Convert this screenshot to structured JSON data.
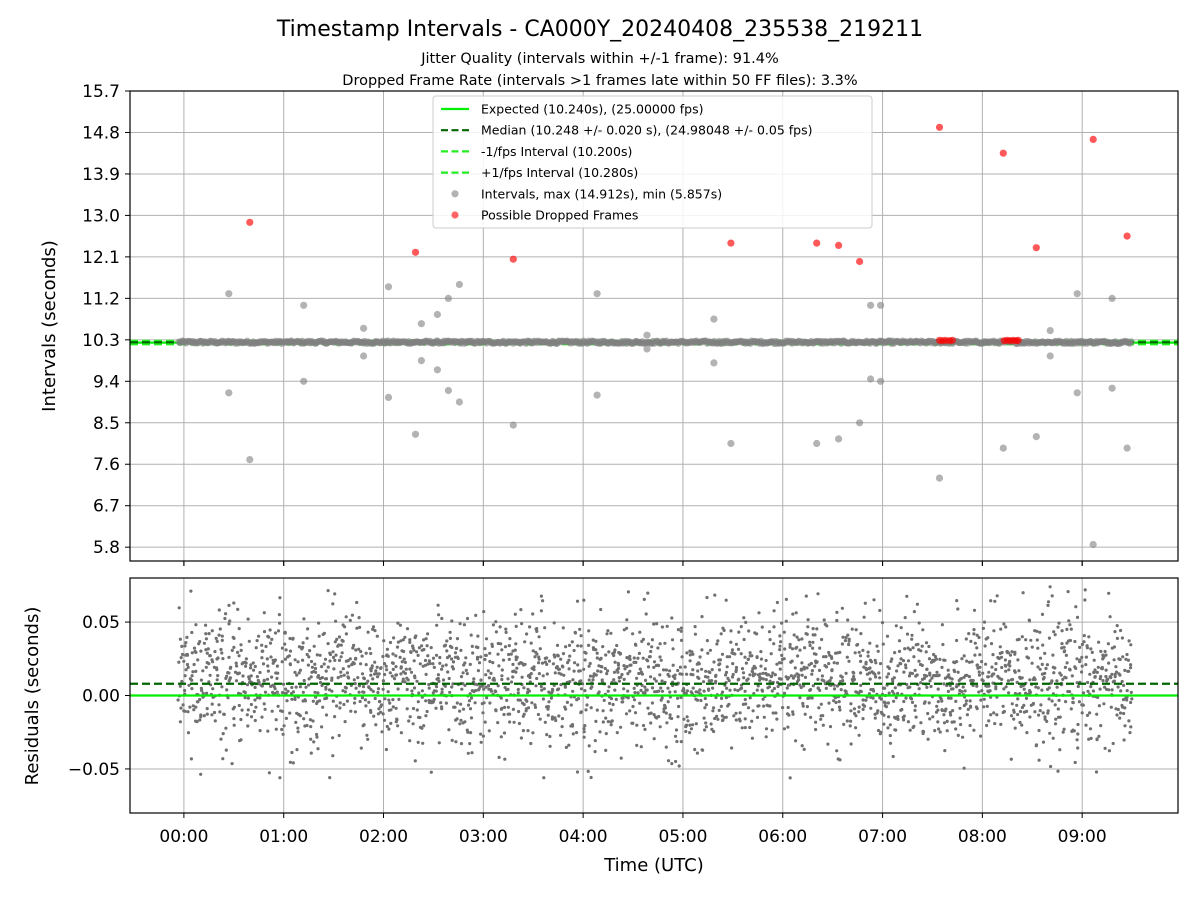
{
  "figure": {
    "title": "Timestamp Intervals - CA000Y_20240408_235538_219211",
    "subtitle_1": "Jitter Quality (intervals within +/-1 frame): 91.4%",
    "subtitle_2": "Dropped Frame Rate (intervals >1 frames late within 50 FF files): 3.3%",
    "xlabel": "Time (UTC)"
  },
  "colors": {
    "expected": "#00ee00",
    "median": "#006400",
    "interval_band": "#22ee22",
    "intervals": "#808080",
    "dropped": "#ff0000",
    "residual_points": "#707070",
    "grid": "#b0b0b0"
  },
  "chart_data": [
    {
      "type": "scatter",
      "panel": "intervals",
      "ylabel": "Intervals (seconds)",
      "ylim": [
        5.5,
        15.7
      ],
      "yticks": [
        5.8,
        6.7,
        7.6,
        8.5,
        9.4,
        10.3,
        11.2,
        12.1,
        13.0,
        13.9,
        14.8,
        15.7
      ],
      "ytick_labels": [
        "5.8",
        "6.7",
        "7.6",
        "8.5",
        "9.4",
        "10.3",
        "11.2",
        "12.1",
        "13.0",
        "13.9",
        "14.8",
        "15.7"
      ],
      "xlim_hours": [
        -0.54,
        9.96
      ],
      "xticks_hours": [
        0,
        1,
        2,
        3,
        4,
        5,
        6,
        7,
        8,
        9
      ],
      "xtick_labels": [
        "00:00",
        "01:00",
        "02:00",
        "03:00",
        "04:00",
        "05:00",
        "06:00",
        "07:00",
        "08:00",
        "09:00"
      ],
      "grid": true,
      "legend_position": "top-center",
      "reference_lines": [
        {
          "name": "Expected (10.240s), (25.00000 fps)",
          "value": 10.24,
          "style": "solid",
          "color": "#00ee00"
        },
        {
          "name": "Median (10.248 +/- 0.020 s), (24.98048 +/- 0.05 fps)",
          "value": 10.248,
          "style": "dashed",
          "color": "#006400"
        },
        {
          "name": "-1/fps Interval (10.200s)",
          "value": 10.2,
          "style": "dashed",
          "color": "#22ee22"
        },
        {
          "name": "+1/fps Interval (10.280s)",
          "value": 10.28,
          "style": "dashed",
          "color": "#22ee22"
        }
      ],
      "series": [
        {
          "name": "Intervals, max (14.912s), min (5.857s)",
          "color": "#808080",
          "dense_band": {
            "x_start_hours": -0.05,
            "x_end_hours": 9.5,
            "center": 10.248,
            "spread": 0.06
          },
          "outliers": [
            [
              0.45,
              11.3
            ],
            [
              0.45,
              9.15
            ],
            [
              0.66,
              7.7
            ],
            [
              1.2,
              11.05
            ],
            [
              1.2,
              9.4
            ],
            [
              1.8,
              10.55
            ],
            [
              1.8,
              9.95
            ],
            [
              2.05,
              11.45
            ],
            [
              2.05,
              9.05
            ],
            [
              2.32,
              8.25
            ],
            [
              2.38,
              10.65
            ],
            [
              2.38,
              9.85
            ],
            [
              2.54,
              10.85
            ],
            [
              2.54,
              9.65
            ],
            [
              2.65,
              11.2
            ],
            [
              2.65,
              9.2
            ],
            [
              2.76,
              11.5
            ],
            [
              2.76,
              8.95
            ],
            [
              3.3,
              8.45
            ],
            [
              4.14,
              11.3
            ],
            [
              4.14,
              9.1
            ],
            [
              4.64,
              10.4
            ],
            [
              4.64,
              10.1
            ],
            [
              5.31,
              10.75
            ],
            [
              5.31,
              9.8
            ],
            [
              5.48,
              8.05
            ],
            [
              6.34,
              8.05
            ],
            [
              6.56,
              8.15
            ],
            [
              6.77,
              8.5
            ],
            [
              6.88,
              11.05
            ],
            [
              6.88,
              9.45
            ],
            [
              6.98,
              11.05
            ],
            [
              6.98,
              9.4
            ],
            [
              7.57,
              7.3
            ],
            [
              8.21,
              7.95
            ],
            [
              8.54,
              8.2
            ],
            [
              8.68,
              10.5
            ],
            [
              8.68,
              9.95
            ],
            [
              8.95,
              11.3
            ],
            [
              8.95,
              9.15
            ],
            [
              9.11,
              5.857
            ],
            [
              9.3,
              11.2
            ],
            [
              9.3,
              9.25
            ],
            [
              9.45,
              7.95
            ]
          ]
        },
        {
          "name": "Possible Dropped Frames",
          "color": "#ff0000",
          "points": [
            [
              0.66,
              12.85
            ],
            [
              2.32,
              12.2
            ],
            [
              3.3,
              12.05
            ],
            [
              5.48,
              12.4
            ],
            [
              6.34,
              12.4
            ],
            [
              6.56,
              12.35
            ],
            [
              6.77,
              12.0
            ],
            [
              7.57,
              14.912
            ],
            [
              8.21,
              14.35
            ],
            [
              8.54,
              12.3
            ],
            [
              9.11,
              14.65
            ],
            [
              9.45,
              12.55
            ],
            [
              7.57,
              10.29
            ],
            [
              7.6,
              10.28
            ],
            [
              7.63,
              10.29
            ],
            [
              7.67,
              10.28
            ],
            [
              7.7,
              10.29
            ],
            [
              8.22,
              10.28
            ],
            [
              8.25,
              10.29
            ],
            [
              8.28,
              10.28
            ],
            [
              8.31,
              10.29
            ],
            [
              8.34,
              10.28
            ],
            [
              8.36,
              10.29
            ]
          ]
        }
      ]
    },
    {
      "type": "scatter",
      "panel": "residuals",
      "xlabel": "Time (UTC)",
      "ylabel": "Residuals (seconds)",
      "ylim": [
        -0.08,
        0.08
      ],
      "yticks": [
        -0.05,
        0.0,
        0.05
      ],
      "ytick_labels": [
        "−0.05",
        "0.00",
        "0.05"
      ],
      "xlim_hours": [
        -0.54,
        9.96
      ],
      "xticks_hours": [
        0,
        1,
        2,
        3,
        4,
        5,
        6,
        7,
        8,
        9
      ],
      "xtick_labels": [
        "00:00",
        "01:00",
        "02:00",
        "03:00",
        "04:00",
        "05:00",
        "06:00",
        "07:00",
        "08:00",
        "09:00"
      ],
      "grid": true,
      "reference_lines": [
        {
          "value": 0.0,
          "style": "solid",
          "color": "#00ee00"
        },
        {
          "value": 0.008,
          "style": "dashed",
          "color": "#006400"
        }
      ],
      "series": [
        {
          "color": "#707070",
          "residual_cloud": {
            "x_start_hours": -0.05,
            "x_end_hours": 9.5,
            "center": 0.01,
            "spread": 0.022,
            "min": -0.06,
            "max": 0.075
          }
        }
      ]
    }
  ]
}
